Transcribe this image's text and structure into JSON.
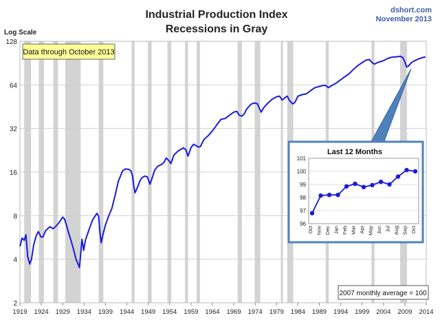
{
  "chart_data": [
    {
      "type": "line",
      "title": "Industrial Production Index",
      "subtitle": "Recessions in Gray",
      "source": "dshort.com",
      "date": "November 2013",
      "ylabel": "Log Scale",
      "yscale": "log2",
      "ylim": [
        2,
        128
      ],
      "yticks": [
        2,
        4,
        8,
        16,
        32,
        64,
        128
      ],
      "xlim": [
        1919,
        2014
      ],
      "xticks": [
        1919,
        1924,
        1929,
        1934,
        1939,
        1944,
        1949,
        1954,
        1959,
        1964,
        1969,
        1974,
        1979,
        1984,
        1989,
        1994,
        1999,
        2004,
        2009,
        2014
      ],
      "grid": "horizontal",
      "annotation": "Data through October 2013",
      "note": "2007 monthly average = 100",
      "colors": {
        "line": "#1a1adb",
        "recession": "#d3d3d3",
        "annotation_fill": "#ffff99",
        "callout": "#4f81bd"
      },
      "recessions": [
        [
          1920.0,
          1921.6
        ],
        [
          1923.4,
          1924.6
        ],
        [
          1926.8,
          1927.9
        ],
        [
          1929.6,
          1933.2
        ],
        [
          1937.4,
          1938.5
        ],
        [
          1945.1,
          1945.8
        ],
        [
          1948.9,
          1949.8
        ],
        [
          1953.5,
          1954.4
        ],
        [
          1957.6,
          1958.3
        ],
        [
          1960.3,
          1961.1
        ],
        [
          1969.9,
          1970.9
        ],
        [
          1973.9,
          1975.2
        ],
        [
          1980.0,
          1980.5
        ],
        [
          1981.5,
          1982.9
        ],
        [
          1990.5,
          1991.2
        ],
        [
          2001.2,
          2001.9
        ],
        [
          2007.9,
          2009.5
        ]
      ],
      "series": [
        {
          "x": [
            1919.0,
            1919.5,
            1920.0,
            1920.4,
            1920.8,
            1921.3,
            1921.7,
            1922.2,
            1922.8,
            1923.3,
            1923.9,
            1924.4,
            1925.0,
            1926.0,
            1926.8,
            1927.5,
            1928.2,
            1929.0,
            1929.4,
            1929.8,
            1930.3,
            1931.0,
            1931.6,
            1932.1,
            1932.6,
            1932.9,
            1933.2,
            1933.5,
            1933.9,
            1934.3,
            1935.0,
            1936.0,
            1937.0,
            1937.4,
            1937.7,
            1938.0,
            1938.4,
            1939.0,
            1939.7,
            1940.5,
            1941.3,
            1942.0,
            1943.0,
            1943.6,
            1944.5,
            1945.0,
            1945.3,
            1945.6,
            1945.9,
            1946.2,
            1946.6,
            1947.0,
            1947.5,
            1948.2,
            1948.8,
            1949.4,
            1949.9,
            1950.5,
            1951.2,
            1952.0,
            1952.6,
            1953.2,
            1953.8,
            1954.3,
            1955.0,
            1956.0,
            1957.2,
            1957.8,
            1958.3,
            1959.0,
            1959.6,
            1960.0,
            1960.8,
            1961.2,
            1962.0,
            1963.0,
            1964.0,
            1965.0,
            1966.0,
            1967.0,
            1968.0,
            1969.0,
            1969.7,
            1970.3,
            1970.9,
            1971.5,
            1972.0,
            1973.0,
            1973.8,
            1974.5,
            1975.0,
            1975.4,
            1976.0,
            1977.0,
            1978.0,
            1979.0,
            1979.7,
            1980.3,
            1980.9,
            1981.5,
            1982.0,
            1982.8,
            1983.3,
            1984.0,
            1985.0,
            1986.0,
            1987.0,
            1988.0,
            1989.0,
            1990.0,
            1990.6,
            1991.1,
            1992.0,
            1993.0,
            1994.0,
            1995.0,
            1996.0,
            1997.0,
            1998.0,
            1999.0,
            2000.0,
            2000.7,
            2001.3,
            2001.9,
            2002.5,
            2003.0,
            2004.0,
            2005.0,
            2006.0,
            2007.0,
            2007.9,
            2008.5,
            2009.0,
            2009.4,
            2009.8,
            2010.5,
            2011.0,
            2012.0,
            2013.0,
            2013.8
          ],
          "y": [
            4.9,
            5.6,
            5.4,
            5.9,
            4.2,
            3.7,
            4.0,
            5.0,
            5.8,
            6.2,
            5.7,
            5.7,
            6.3,
            6.7,
            6.5,
            6.8,
            7.2,
            7.8,
            7.6,
            7.0,
            6.2,
            5.3,
            4.6,
            4.0,
            3.7,
            3.5,
            4.3,
            5.5,
            4.6,
            5.4,
            6.2,
            7.5,
            8.3,
            7.9,
            6.2,
            5.2,
            5.9,
            6.9,
            7.9,
            9.0,
            11.2,
            13.8,
            16.3,
            16.8,
            16.7,
            16.2,
            15.1,
            13.0,
            11.5,
            12.0,
            12.8,
            13.8,
            14.6,
            15.0,
            14.8,
            13.2,
            14.5,
            16.5,
            17.5,
            18.0,
            18.5,
            20.0,
            19.2,
            18.3,
            21.0,
            22.4,
            23.5,
            22.8,
            20.6,
            23.6,
            24.9,
            24.5,
            23.8,
            24.0,
            26.8,
            28.5,
            30.8,
            33.8,
            37.0,
            37.5,
            39.5,
            41.5,
            42.0,
            39.5,
            38.9,
            40.5,
            43.5,
            47.0,
            48.0,
            47.5,
            44.0,
            41.5,
            44.5,
            48.0,
            51.0,
            53.0,
            53.5,
            50.2,
            52.0,
            53.5,
            50.0,
            47.3,
            48.5,
            53.5,
            54.8,
            55.5,
            58.5,
            61.3,
            62.4,
            63.5,
            63.2,
            61.2,
            63.5,
            66.0,
            69.5,
            73.0,
            76.5,
            82.0,
            87.0,
            91.2,
            95.0,
            95.8,
            91.5,
            89.0,
            91.0,
            92.2,
            94.0,
            97.5,
            99.5,
            100.0,
            100.8,
            99.0,
            92.0,
            85.2,
            86.0,
            91.0,
            93.0,
            96.2,
            98.5,
            100.0
          ]
        }
      ]
    },
    {
      "type": "line",
      "title": "Last 12 Months",
      "categories": [
        "Oct",
        "Nov",
        "Dec",
        "Jan",
        "Feb",
        "Mar",
        "Apr",
        "May",
        "Jun",
        "Jul",
        "Aug",
        "Sep",
        "Oct"
      ],
      "values": [
        96.8,
        98.15,
        98.2,
        98.2,
        98.85,
        99.05,
        98.8,
        98.95,
        99.2,
        99.0,
        99.6,
        100.1,
        100.0
      ],
      "ylim": [
        96,
        101
      ],
      "yticks": [
        96,
        97,
        98,
        99,
        100,
        101
      ]
    }
  ]
}
